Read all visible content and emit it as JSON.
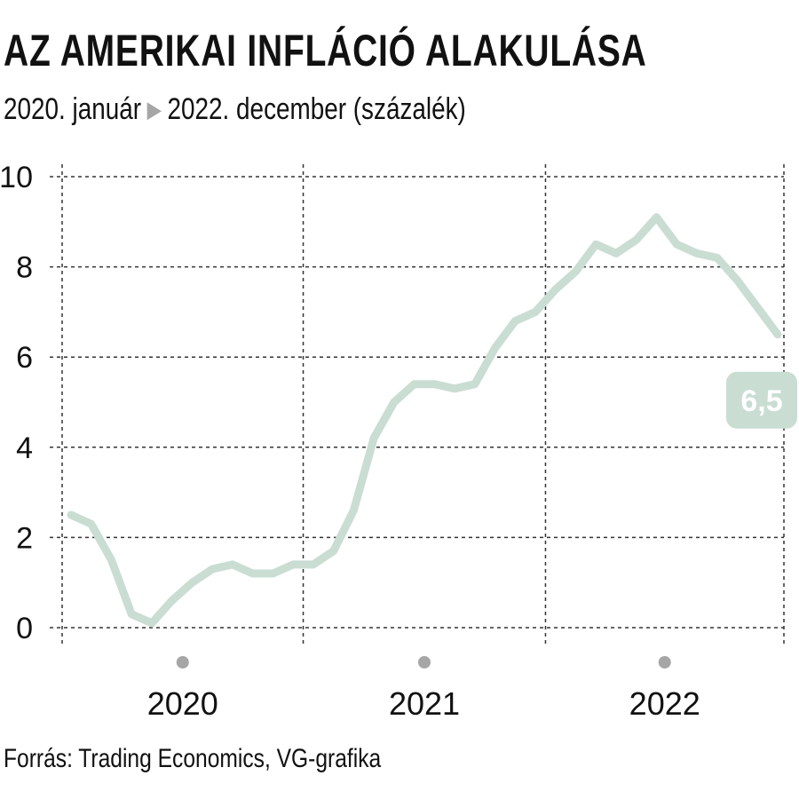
{
  "header": {
    "title": "AZ AMERIKAI INFLÁCIÓ ALAKULÁSA",
    "subtitle_start": "2020. január",
    "subtitle_end": "2022. december (százalék)"
  },
  "footer": {
    "source": "Forrás: Trading Economics, VG-grafika"
  },
  "colors": {
    "line": "#c9ddd3",
    "callout": "#c9ddd3",
    "grid": "#333333",
    "year_dot": "#a6a6a6"
  },
  "chart_data": {
    "type": "line",
    "ylim": [
      0,
      10
    ],
    "y_ticks": [
      0,
      2,
      4,
      6,
      8,
      10
    ],
    "years": [
      "2020",
      "2021",
      "2022"
    ],
    "grid": true,
    "series": [
      {
        "values": [
          2.5,
          2.3,
          1.5,
          0.3,
          0.1,
          0.6,
          1.0,
          1.3,
          1.4,
          1.2,
          1.2,
          1.4,
          1.4,
          1.7,
          2.6,
          4.2,
          5.0,
          5.4,
          5.4,
          5.3,
          5.4,
          6.2,
          6.8,
          7.0,
          7.5,
          7.9,
          8.5,
          8.3,
          8.6,
          9.1,
          8.5,
          8.3,
          8.2,
          7.7,
          7.1,
          6.5
        ]
      }
    ],
    "end_label": "6,5"
  }
}
